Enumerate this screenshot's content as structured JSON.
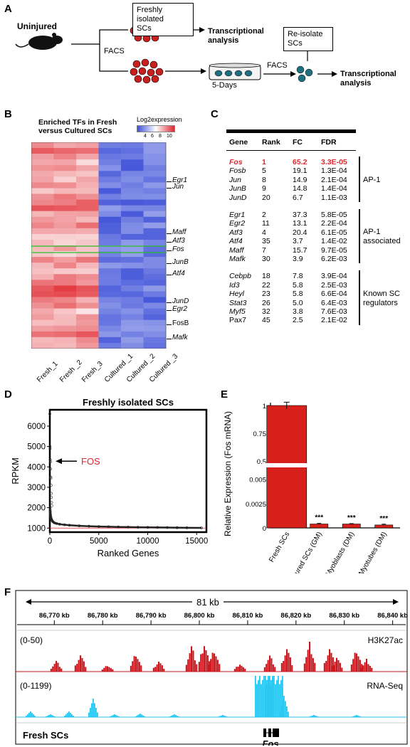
{
  "panels": {
    "A": "A",
    "B": "B",
    "C": "C",
    "D": "D",
    "E": "E",
    "F": "F"
  },
  "panelA": {
    "mouse_label": "Uninjured",
    "fresh_box": [
      "Freshly isolated",
      "SCs"
    ],
    "facs1": "FACS",
    "analysis1": [
      "Transcriptional",
      "analysis"
    ],
    "culture_label": "5-Days",
    "reisolate_box": [
      "Re-isolate",
      "SCs"
    ],
    "facs2": "FACS",
    "analysis2": [
      "Transcriptional",
      "analysis"
    ]
  },
  "panelB": {
    "title": [
      "Enriched TFs in Fresh",
      "versus Cultured SCs"
    ],
    "colorbar_label": "Log2expression",
    "colorbar_ticks": [
      "4",
      "6",
      "8",
      "10"
    ],
    "gene_labels": [
      "Egr1",
      "Jun",
      "Maff",
      "Atf3",
      "Fos",
      "JunB",
      "Atf4",
      "JunD",
      "Egr2",
      "FosB",
      "Mafk"
    ],
    "samples": [
      "Fresh_1",
      "Fresh _2",
      "Fresh_3",
      "Cultured _1",
      "Cultured _2",
      "Cultured _3"
    ],
    "colors": {
      "high": "#e0262d",
      "low": "#3c4fd8",
      "mid": "#ffffff",
      "highlight": "#2fbf2f"
    }
  },
  "panelC": {
    "headers": [
      "Gene",
      "Rank",
      "FC",
      "FDR"
    ],
    "groups": [
      {
        "label": [
          "AP-1"
        ],
        "rows": [
          [
            "Fos",
            "1",
            "65.2",
            "3.3E-05"
          ],
          [
            "Fosb",
            "5",
            "19.1",
            "1.3E-04"
          ],
          [
            "Jun",
            "8",
            "14.9",
            "2.1E-04"
          ],
          [
            "JunB",
            "9",
            "14.8",
            "1.4E-04"
          ],
          [
            "JunD",
            "20",
            "6.7",
            "1.1E-03"
          ]
        ]
      },
      {
        "label": [
          "AP-1",
          "associated"
        ],
        "rows": [
          [
            "Egr1",
            "2",
            "37.3",
            "5.8E-05"
          ],
          [
            "Egr2",
            "11",
            "13.1",
            "2.2E-04"
          ],
          [
            "Atf3",
            "4",
            "20.4",
            "6.1E-05"
          ],
          [
            "Atf4",
            "35",
            "3.7",
            "1.4E-02"
          ],
          [
            "Maff",
            "7",
            "15.7",
            "9.7E-05"
          ],
          [
            "Mafk",
            "30",
            "3.9",
            "6.2E-03"
          ]
        ]
      },
      {
        "label": [
          "Known SC",
          "regulators"
        ],
        "rows": [
          [
            "Cebpb",
            "18",
            "7.8",
            "3.9E-04"
          ],
          [
            "Id3",
            "22",
            "5.8",
            "2.5E-03"
          ],
          [
            "Heyl",
            "23",
            "5.8",
            "6.6E-04"
          ],
          [
            "Stat3",
            "26",
            "5.0",
            "6.4E-03"
          ],
          [
            "Myf5",
            "32",
            "3.8",
            "7.6E-03"
          ],
          [
            "Pax7",
            "45",
            "2.5",
            "2.1E-02"
          ]
        ]
      }
    ]
  },
  "chart_data": [
    {
      "type": "scatter",
      "title": "Freshly isolated SCs",
      "xlabel": "Ranked Genes",
      "ylabel": "RPKM",
      "xlim": [
        0,
        16000
      ],
      "ylim": [
        800,
        6800
      ],
      "xticks": [
        "0",
        "5000",
        "10000",
        "15000"
      ],
      "yticks": [
        "1000",
        "2000",
        "3000",
        "4000",
        "5000",
        "6000"
      ],
      "annotation": "FOS",
      "reference_line_y": 1000,
      "points": [
        [
          1,
          6600
        ],
        [
          2,
          5000
        ],
        [
          3,
          4900
        ],
        [
          4,
          4350
        ],
        [
          5,
          4250
        ],
        [
          6,
          3900
        ],
        [
          7,
          3500
        ],
        [
          8,
          3450
        ],
        [
          10,
          3100
        ],
        [
          12,
          2700
        ],
        [
          15,
          2500
        ],
        [
          20,
          2250
        ],
        [
          25,
          2100
        ],
        [
          30,
          2000
        ],
        [
          40,
          1900
        ],
        [
          50,
          1800
        ],
        [
          60,
          1700
        ],
        [
          80,
          1620
        ],
        [
          100,
          1550
        ],
        [
          130,
          1480
        ],
        [
          160,
          1430
        ],
        [
          200,
          1390
        ],
        [
          250,
          1350
        ],
        [
          300,
          1320
        ],
        [
          400,
          1280
        ],
        [
          500,
          1250
        ],
        [
          700,
          1220
        ],
        [
          1000,
          1190
        ],
        [
          1500,
          1160
        ],
        [
          2000,
          1140
        ],
        [
          3000,
          1110
        ],
        [
          4000,
          1090
        ],
        [
          5000,
          1075
        ],
        [
          6000,
          1065
        ],
        [
          7000,
          1055
        ],
        [
          8000,
          1048
        ],
        [
          9000,
          1040
        ],
        [
          10000,
          1035
        ],
        [
          11000,
          1030
        ],
        [
          12000,
          1025
        ],
        [
          13000,
          1020
        ],
        [
          14000,
          1015
        ],
        [
          15500,
          1010
        ]
      ]
    },
    {
      "type": "bar",
      "ylabel": "Relative Expression (Fos mRNA)",
      "categories": [
        "Fresh SCs",
        "Cultured SCs (GM)",
        "Myoblasts (DM)",
        "Myotubes (DM)"
      ],
      "values": [
        1.0,
        0.0004,
        0.0004,
        0.0003
      ],
      "errors": [
        0.03,
        6e-05,
        4e-05,
        8e-05
      ],
      "significance": [
        "",
        "***",
        "***",
        "***"
      ],
      "yticks_upper": [
        "1",
        "0.75",
        "0.5"
      ],
      "yticks_lower": [
        "0.005",
        "0.0025",
        "0"
      ],
      "color": "#d62019"
    },
    {
      "type": "area",
      "span_label": "81 kb",
      "xticks": [
        "86,770 kb",
        "86,780 kb",
        "86,790 kb",
        "86,800 kb",
        "86,810 kb",
        "86,820 kb",
        "86,830 kb",
        "86,840 kb"
      ],
      "xlim": [
        86762,
        86843
      ],
      "series": [
        {
          "name": "H3K27ac",
          "range": "(0-50)",
          "color": "#c8141b"
        },
        {
          "name": "RNA-Seq",
          "range": "(0-1199)",
          "color": "#29c4ee"
        }
      ],
      "track_label": "Fresh SCs",
      "gene": "Fos"
    }
  ]
}
